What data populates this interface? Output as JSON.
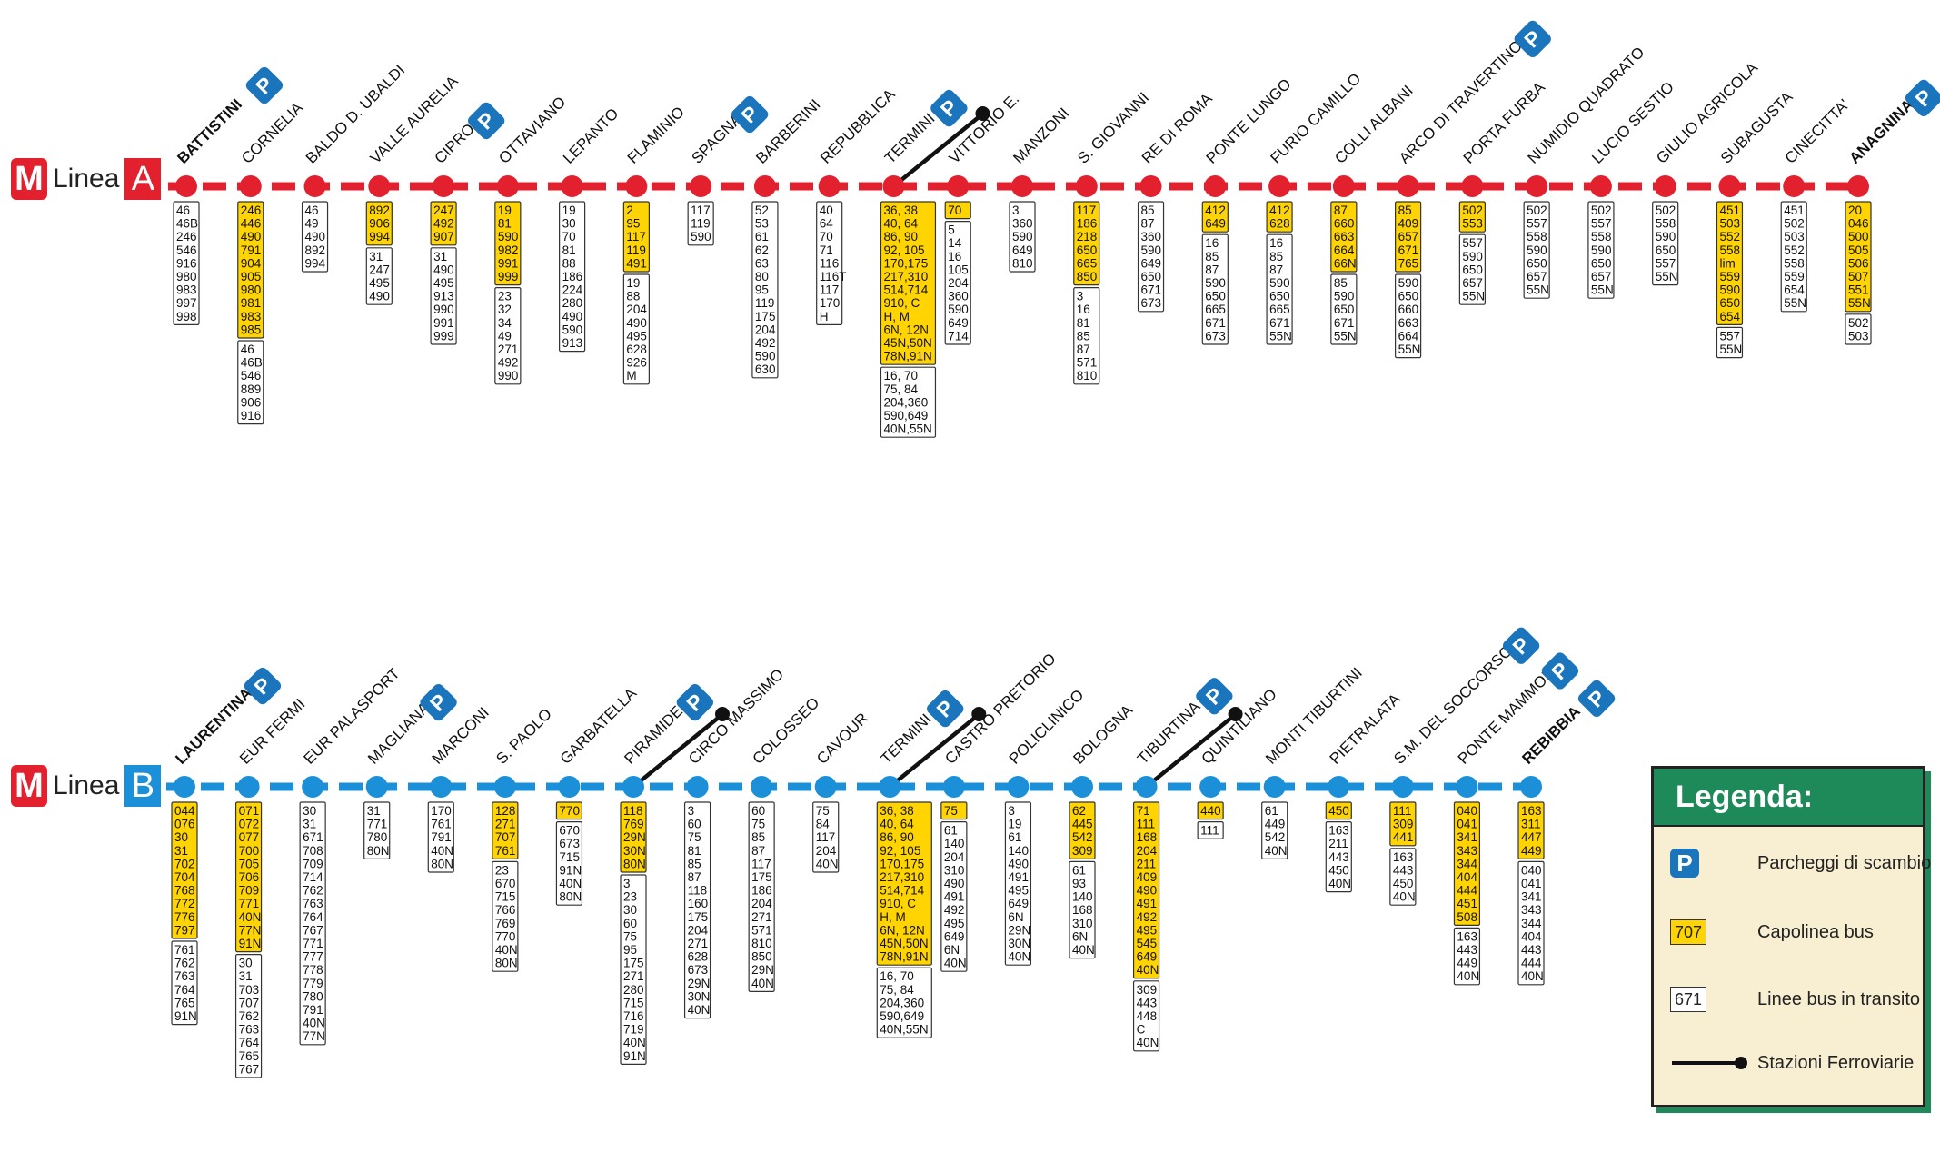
{
  "lineA": {
    "logo": "M",
    "label": "Linea",
    "letter": "A",
    "color": "#e2202e",
    "stations": [
      {
        "name": "BATTISTINI",
        "bold": true,
        "parking": true,
        "rail": false,
        "terminal": [],
        "transit": [
          "46",
          "46B",
          "246",
          "546",
          "916",
          "980",
          "983",
          "997",
          "998"
        ]
      },
      {
        "name": "CORNELIA",
        "bold": false,
        "parking": false,
        "rail": false,
        "terminal": [
          "246",
          "446",
          "490",
          "791",
          "904",
          "905",
          "980",
          "981",
          "983",
          "985"
        ],
        "transit": [
          "46",
          "46B",
          "546",
          "889",
          "906",
          "916"
        ]
      },
      {
        "name": "BALDO D. UBALDI",
        "bold": false,
        "parking": false,
        "rail": false,
        "terminal": [],
        "transit": [
          "46",
          "49",
          "490",
          "892",
          "994"
        ]
      },
      {
        "name": "VALLE AURELIA",
        "bold": false,
        "parking": false,
        "rail": false,
        "terminal": [
          "892",
          "906",
          "994"
        ],
        "transit": [
          "31",
          "247",
          "495",
          "490"
        ]
      },
      {
        "name": "CIPRO",
        "bold": false,
        "parking": true,
        "rail": false,
        "terminal": [
          "247",
          "492",
          "907"
        ],
        "transit": [
          "31",
          "490",
          "495",
          "913",
          "990",
          "991",
          "999"
        ]
      },
      {
        "name": "OTTAVIANO",
        "bold": false,
        "parking": false,
        "rail": false,
        "terminal": [
          "19",
          "81",
          "590",
          "982",
          "991",
          "999"
        ],
        "transit": [
          "23",
          "32",
          "34",
          "49",
          "271",
          "492",
          "990"
        ]
      },
      {
        "name": "LEPANTO",
        "bold": false,
        "parking": false,
        "rail": false,
        "terminal": [],
        "transit": [
          "19",
          "30",
          "70",
          "81",
          "88",
          "186",
          "224",
          "280",
          "490",
          "590",
          "913"
        ]
      },
      {
        "name": "FLAMINIO",
        "bold": false,
        "parking": false,
        "rail": false,
        "terminal": [
          "2",
          "95",
          "117",
          "119",
          "491"
        ],
        "transit": [
          "19",
          "88",
          "204",
          "490",
          "495",
          "628",
          "926",
          "M"
        ]
      },
      {
        "name": "SPAGNA",
        "bold": false,
        "parking": true,
        "rail": false,
        "terminal": [],
        "transit": [
          "117",
          "119",
          "590"
        ]
      },
      {
        "name": "BARBERINI",
        "bold": false,
        "parking": false,
        "rail": false,
        "terminal": [],
        "transit": [
          "52",
          "53",
          "61",
          "62",
          "63",
          "80",
          "95",
          "119",
          "175",
          "204",
          "492",
          "590",
          "630"
        ]
      },
      {
        "name": "REPUBBLICA",
        "bold": false,
        "parking": false,
        "rail": false,
        "terminal": [],
        "transit": [
          "40",
          "64",
          "70",
          "71",
          "116",
          "116T",
          "117",
          "170",
          "H"
        ]
      },
      {
        "name": "TERMINI",
        "bold": false,
        "parking": true,
        "rail": true,
        "terminal": [
          "36, 38",
          "40, 64",
          "86, 90",
          "92, 105",
          "170,175",
          "217,310",
          "514,714",
          "910, C",
          "H,    M",
          "6N, 12N",
          "45N,50N",
          "78N,91N"
        ],
        "transit": [
          "16,  70",
          "75,  84",
          "204,360",
          "590,649",
          "40N,55N"
        ]
      },
      {
        "name": "VITTORIO E.",
        "bold": false,
        "parking": false,
        "rail": false,
        "terminal": [
          "70"
        ],
        "transit": [
          "5",
          "14",
          "16",
          "105",
          "204",
          "360",
          "590",
          "649",
          "714"
        ]
      },
      {
        "name": "MANZONI",
        "bold": false,
        "parking": false,
        "rail": false,
        "terminal": [],
        "transit": [
          "3",
          "360",
          "590",
          "649",
          "810"
        ]
      },
      {
        "name": "S. GIOVANNI",
        "bold": false,
        "parking": false,
        "rail": false,
        "terminal": [
          "117",
          "186",
          "218",
          "650",
          "665",
          "850"
        ],
        "transit": [
          "3",
          "16",
          "81",
          "85",
          "87",
          "571",
          "810"
        ]
      },
      {
        "name": "RE DI ROMA",
        "bold": false,
        "parking": false,
        "rail": false,
        "terminal": [],
        "transit": [
          "85",
          "87",
          "360",
          "590",
          "649",
          "650",
          "671",
          "673"
        ]
      },
      {
        "name": "PONTE LUNGO",
        "bold": false,
        "parking": false,
        "rail": false,
        "terminal": [
          "412",
          "649"
        ],
        "transit": [
          "16",
          "85",
          "87",
          "590",
          "650",
          "665",
          "671",
          "673"
        ]
      },
      {
        "name": "FURIO CAMILLO",
        "bold": false,
        "parking": false,
        "rail": false,
        "terminal": [
          "412",
          "628"
        ],
        "transit": [
          "16",
          "85",
          "87",
          "590",
          "650",
          "665",
          "671",
          "55N"
        ]
      },
      {
        "name": "COLLI ALBANI",
        "bold": false,
        "parking": false,
        "rail": false,
        "terminal": [
          "87",
          "660",
          "663",
          "664",
          "66N"
        ],
        "transit": [
          "85",
          "590",
          "650",
          "671",
          "55N"
        ]
      },
      {
        "name": "ARCO DI TRAVERTINO",
        "bold": false,
        "parking": true,
        "rail": false,
        "terminal": [
          "85",
          "409",
          "657",
          "671",
          "765"
        ],
        "transit": [
          "590",
          "650",
          "660",
          "663",
          "664",
          "55N"
        ]
      },
      {
        "name": "PORTA FURBA",
        "bold": false,
        "parking": false,
        "rail": false,
        "terminal": [
          "502",
          "553"
        ],
        "transit": [
          "557",
          "590",
          "650",
          "657",
          "55N"
        ]
      },
      {
        "name": "NUMIDIO QUADRATO",
        "bold": false,
        "parking": false,
        "rail": false,
        "terminal": [],
        "transit": [
          "502",
          "557",
          "558",
          "590",
          "650",
          "657",
          "55N"
        ]
      },
      {
        "name": "LUCIO SESTIO",
        "bold": false,
        "parking": false,
        "rail": false,
        "terminal": [],
        "transit": [
          "502",
          "557",
          "558",
          "590",
          "650",
          "657",
          "55N"
        ]
      },
      {
        "name": "GIULIO AGRICOLA",
        "bold": false,
        "parking": false,
        "rail": false,
        "terminal": [],
        "transit": [
          "502",
          "558",
          "590",
          "650",
          "557",
          "55N"
        ]
      },
      {
        "name": "SUBAGUSTA",
        "bold": false,
        "parking": false,
        "rail": false,
        "terminal": [
          "451",
          "503",
          "552",
          "558",
          "lim",
          "559",
          "590",
          "650",
          "654"
        ],
        "transit": [
          "557",
          "55N"
        ]
      },
      {
        "name": "CINECITTA'",
        "bold": false,
        "parking": false,
        "rail": false,
        "terminal": [],
        "transit": [
          "451",
          "502",
          "503",
          "552",
          "558",
          "559",
          "654",
          "55N"
        ]
      },
      {
        "name": "ANAGNINA",
        "bold": true,
        "parking": true,
        "rail": false,
        "terminal": [
          "20",
          "046",
          "500",
          "505",
          "506",
          "507",
          "551",
          "55N"
        ],
        "transit": [
          "502",
          "503"
        ]
      }
    ]
  },
  "lineB": {
    "logo": "M",
    "label": "Linea",
    "letter": "B",
    "color": "#1b8fd8",
    "stations": [
      {
        "name": "LAURENTINA",
        "bold": true,
        "parking": true,
        "rail": false,
        "terminal": [
          "044",
          "076",
          "30",
          "31",
          "702",
          "704",
          "768",
          "772",
          "776",
          "797"
        ],
        "transit": [
          "761",
          "762",
          "763",
          "764",
          "765",
          "91N"
        ]
      },
      {
        "name": "EUR FERMI",
        "bold": false,
        "parking": false,
        "rail": false,
        "terminal": [
          "071",
          "072",
          "077",
          "700",
          "705",
          "706",
          "709",
          "771",
          "40N",
          "77N",
          "91N"
        ],
        "transit": [
          "30",
          "31",
          "703",
          "707",
          "762",
          "763",
          "764",
          "765",
          "767"
        ]
      },
      {
        "name": "EUR PALASPORT",
        "bold": false,
        "parking": false,
        "rail": false,
        "terminal": [],
        "transit": [
          "30",
          "31",
          "671",
          "708",
          "709",
          "714",
          "762",
          "763",
          "764",
          "767",
          "771",
          "777",
          "778",
          "779",
          "780",
          "791",
          "40N",
          "77N"
        ]
      },
      {
        "name": "MAGLIANA",
        "bold": false,
        "parking": true,
        "rail": false,
        "terminal": [],
        "transit": [
          "31",
          "771",
          "780",
          "80N"
        ]
      },
      {
        "name": "MARCONI",
        "bold": false,
        "parking": false,
        "rail": false,
        "terminal": [],
        "transit": [
          "170",
          "761",
          "791",
          "40N",
          "80N"
        ]
      },
      {
        "name": "S. PAOLO",
        "bold": false,
        "parking": false,
        "rail": false,
        "terminal": [
          "128",
          "271",
          "707",
          "761"
        ],
        "transit": [
          "23",
          "670",
          "715",
          "766",
          "769",
          "770",
          "40N",
          "80N"
        ]
      },
      {
        "name": "GARBATELLA",
        "bold": false,
        "parking": false,
        "rail": false,
        "terminal": [
          "770"
        ],
        "transit": [
          "670",
          "673",
          "715",
          "91N",
          "40N",
          "80N"
        ]
      },
      {
        "name": "PIRAMIDE",
        "bold": false,
        "parking": true,
        "rail": true,
        "terminal": [
          "118",
          "769",
          "29N",
          "30N",
          "80N"
        ],
        "transit": [
          "3",
          "23",
          "30",
          "60",
          "75",
          "95",
          "175",
          "271",
          "280",
          "715",
          "716",
          "719",
          "40N",
          "91N"
        ]
      },
      {
        "name": "CIRCO MASSIMO",
        "bold": false,
        "parking": false,
        "rail": false,
        "terminal": [],
        "transit": [
          "3",
          "60",
          "75",
          "81",
          "85",
          "87",
          "118",
          "160",
          "175",
          "204",
          "271",
          "628",
          "673",
          "29N",
          "30N",
          "40N"
        ]
      },
      {
        "name": "COLOSSEO",
        "bold": false,
        "parking": false,
        "rail": false,
        "terminal": [],
        "transit": [
          "60",
          "75",
          "85",
          "87",
          "117",
          "175",
          "186",
          "204",
          "271",
          "571",
          "810",
          "850",
          "29N",
          "40N"
        ]
      },
      {
        "name": "CAVOUR",
        "bold": false,
        "parking": false,
        "rail": false,
        "terminal": [],
        "transit": [
          "75",
          "84",
          "117",
          "204",
          "40N"
        ]
      },
      {
        "name": "TERMINI",
        "bold": false,
        "parking": true,
        "rail": true,
        "terminal": [
          "36, 38",
          "40, 64",
          "86, 90",
          "92, 105",
          "170,175",
          "217,310",
          "514,714",
          "910, C",
          "H,    M",
          "6N, 12N",
          "45N,50N",
          "78N,91N"
        ],
        "transit": [
          "16,  70",
          "75,  84",
          "204,360",
          "590,649",
          "40N,55N"
        ]
      },
      {
        "name": "CASTRO PRETORIO",
        "bold": false,
        "parking": false,
        "rail": false,
        "terminal": [
          "75"
        ],
        "transit": [
          "61",
          "140",
          "204",
          "310",
          "490",
          "491",
          "492",
          "495",
          "649",
          "6N",
          "40N"
        ]
      },
      {
        "name": "POLICLINICO",
        "bold": false,
        "parking": false,
        "rail": false,
        "terminal": [],
        "transit": [
          "3",
          "19",
          "61",
          "140",
          "490",
          "491",
          "495",
          "649",
          "6N",
          "29N",
          "30N",
          "40N"
        ]
      },
      {
        "name": "BOLOGNA",
        "bold": false,
        "parking": false,
        "rail": false,
        "terminal": [
          "62",
          "445",
          "542",
          "309"
        ],
        "transit": [
          "61",
          "93",
          "140",
          "168",
          "310",
          "6N",
          "40N"
        ]
      },
      {
        "name": "TIBURTINA",
        "bold": false,
        "parking": true,
        "rail": true,
        "terminal": [
          "71",
          "111",
          "168",
          "204",
          "211",
          "409",
          "490",
          "491",
          "492",
          "495",
          "545",
          "649",
          "40N"
        ],
        "transit": [
          "309",
          "443",
          "448",
          "C",
          "40N"
        ]
      },
      {
        "name": "QUINTILIANO",
        "bold": false,
        "parking": false,
        "rail": false,
        "terminal": [
          "440"
        ],
        "transit": [
          "111"
        ]
      },
      {
        "name": "MONTI TIBURTINI",
        "bold": false,
        "parking": false,
        "rail": false,
        "terminal": [],
        "transit": [
          "61",
          "449",
          "542",
          "40N"
        ]
      },
      {
        "name": "PIETRALATA",
        "bold": false,
        "parking": false,
        "rail": false,
        "terminal": [
          "450"
        ],
        "transit": [
          "163",
          "211",
          "443",
          "450",
          "40N"
        ]
      },
      {
        "name": "S.M. DEL SOCCORSO",
        "bold": false,
        "parking": true,
        "rail": false,
        "terminal": [
          "111",
          "309",
          "441"
        ],
        "transit": [
          "163",
          "443",
          "450",
          "40N"
        ]
      },
      {
        "name": "PONTE MAMMOLO",
        "bold": false,
        "parking": true,
        "rail": false,
        "terminal": [
          "040",
          "041",
          "341",
          "343",
          "344",
          "404",
          "444",
          "451",
          "508"
        ],
        "transit": [
          "163",
          "443",
          "449",
          "40N"
        ]
      },
      {
        "name": "REBIBBIA",
        "bold": true,
        "parking": true,
        "rail": false,
        "terminal": [
          "163",
          "311",
          "447",
          "449"
        ],
        "transit": [
          "040",
          "041",
          "341",
          "343",
          "344",
          "404",
          "443",
          "444",
          "40N"
        ]
      }
    ]
  },
  "legend": {
    "title": "Legenda:",
    "parking_symbol": "P",
    "parking_label": "Parcheggi di scambio",
    "terminal_sample": "707",
    "terminal_label": "Capolinea bus",
    "transit_sample": "671",
    "transit_label": "Linee bus in transito",
    "rail_label": "Stazioni Ferroviarie"
  },
  "colors": {
    "terminal_fill": "#ffd400",
    "parking": "#1b75bc",
    "legend_bg": "#f8eed1",
    "legend_header": "#1e8a5a"
  }
}
